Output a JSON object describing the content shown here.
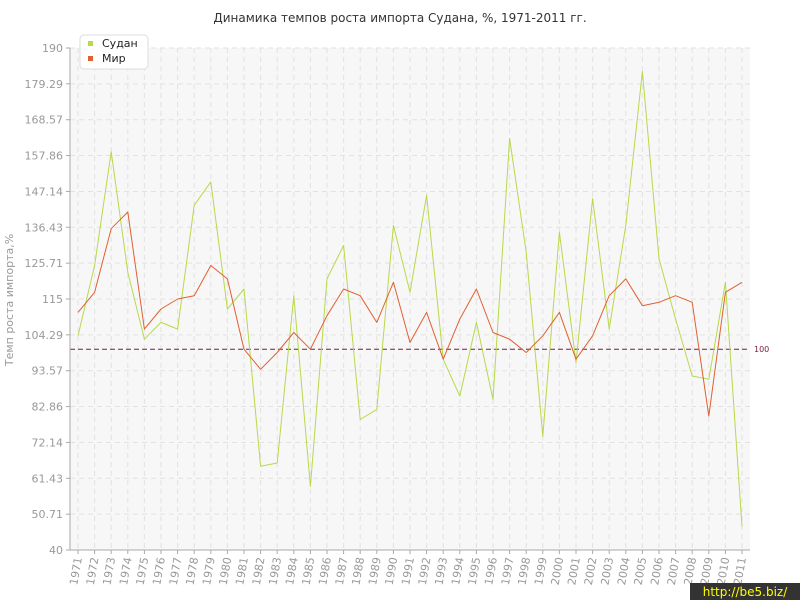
{
  "chart_data": {
    "type": "line",
    "title": "Динамика темпов роста импорта Судана, %, 1971-2011 гг.",
    "ylabel": "Темп роста импорта,%",
    "xlabel": "",
    "ylim": [
      40,
      190
    ],
    "yticks": [
      "40",
      "50.71",
      "61.43",
      "72.14",
      "82.86",
      "93.57",
      "104.29",
      "115",
      "125.71",
      "136.43",
      "147.14",
      "157.86",
      "168.57",
      "179.29",
      "190"
    ],
    "x": [
      "1971",
      "1972",
      "1973",
      "1974",
      "1975",
      "1976",
      "1977",
      "1978",
      "1979",
      "1980",
      "1981",
      "1982",
      "1983",
      "1984",
      "1985",
      "1986",
      "1987",
      "1988",
      "1989",
      "1990",
      "1991",
      "1992",
      "1993",
      "1994",
      "1995",
      "1996",
      "1997",
      "1998",
      "1999",
      "2000",
      "2001",
      "2002",
      "2003",
      "2004",
      "2005",
      "2006",
      "2007",
      "2008",
      "2009",
      "2010",
      "2011"
    ],
    "series": [
      {
        "name": "Судан",
        "color": "#b8d94a",
        "values": [
          104,
          125,
          159,
          123,
          103,
          108,
          106,
          143,
          150,
          112,
          118,
          65,
          66,
          116,
          59,
          121,
          131,
          79,
          82,
          137,
          117,
          146,
          97,
          86,
          108,
          85,
          163,
          129,
          74,
          135,
          96,
          145,
          106,
          137,
          183,
          127,
          109,
          92,
          91,
          120,
          47
        ]
      },
      {
        "name": "Мир",
        "color": "#e06030",
        "values": [
          111,
          117,
          136,
          141,
          106,
          112,
          115,
          116,
          125,
          121,
          100,
          94,
          99,
          105,
          100,
          110,
          118,
          116,
          108,
          120,
          102,
          111,
          97,
          109,
          118,
          105,
          103,
          99,
          104,
          111,
          97,
          104,
          116,
          121,
          113,
          114,
          116,
          114,
          80,
          117,
          120
        ]
      }
    ],
    "reference_line": {
      "value": 100,
      "label": "100",
      "color": "#7a1f3a"
    },
    "grid": true,
    "legend": "top-left"
  },
  "watermark": "http://be5.biz/"
}
